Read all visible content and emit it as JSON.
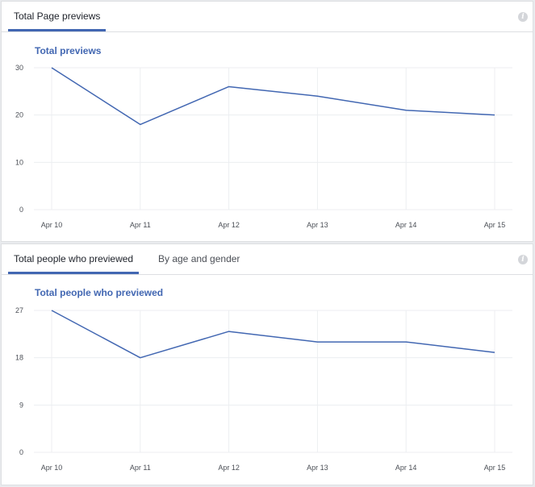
{
  "colors": {
    "accent": "#4267b2",
    "line": "#4267b2",
    "grid": "#eceef1"
  },
  "sections": [
    {
      "tabs": [
        {
          "label": "Total Page previews",
          "active": true
        }
      ],
      "chart_title": "Total previews",
      "info_icon": "info-icon"
    },
    {
      "tabs": [
        {
          "label": "Total people who previewed",
          "active": true
        },
        {
          "label": "By age and gender",
          "active": false
        }
      ],
      "chart_title": "Total people who previewed",
      "info_icon": "info-icon"
    }
  ],
  "chart_data": [
    {
      "type": "line",
      "title": "Total previews",
      "categories": [
        "Apr 10",
        "Apr 11",
        "Apr 12",
        "Apr 13",
        "Apr 14",
        "Apr 15"
      ],
      "values": [
        30,
        18,
        26,
        24,
        21,
        20
      ],
      "yticks": [
        0,
        10,
        20,
        30
      ],
      "ylim": [
        0,
        30
      ],
      "grid": true,
      "legend": "none"
    },
    {
      "type": "line",
      "title": "Total people who previewed",
      "categories": [
        "Apr 10",
        "Apr 11",
        "Apr 12",
        "Apr 13",
        "Apr 14",
        "Apr 15"
      ],
      "values": [
        27,
        18,
        23,
        21,
        21,
        19
      ],
      "yticks": [
        0,
        9,
        18,
        27
      ],
      "ylim": [
        0,
        27
      ],
      "grid": true,
      "legend": "none"
    }
  ]
}
